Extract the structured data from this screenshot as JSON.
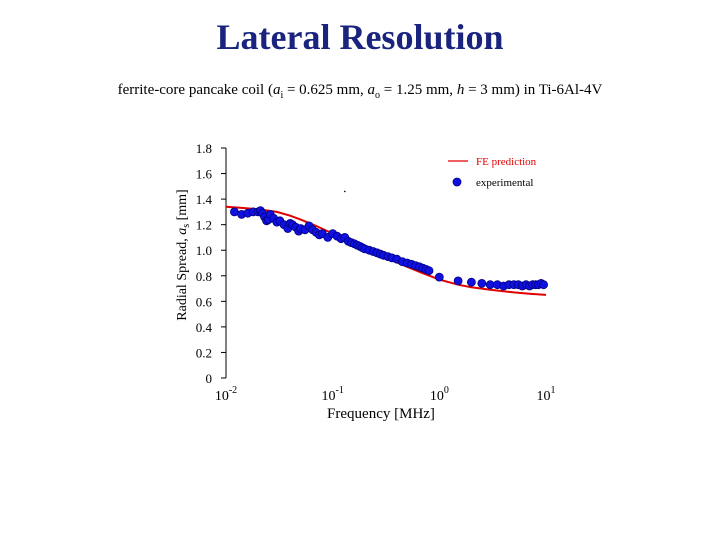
{
  "slide": {
    "title": "Lateral Resolution"
  },
  "subtitle": {
    "prefix": "ferrite-core pancake coil (",
    "ai_sym": "a",
    "ai_sub": "i",
    "ai_val": " = 0.625 mm, ",
    "ao_sym": "a",
    "ao_sub": "o",
    "ao_val": " = 1.25 mm, ",
    "h_sym": "h",
    "h_val": " = 3 mm)  in Ti-6Al-4V"
  },
  "colors": {
    "title": "#1a237e",
    "fe_line": "#e00000",
    "points": "#1010e0",
    "point_edge": "#000080"
  },
  "chart_data": {
    "type": "scatter",
    "title": "",
    "xlabel": "Frequency [MHz]",
    "ylabel_prefix": "Radial Spread,  ",
    "ylabel_sym": "a",
    "ylabel_sub": "s",
    "ylabel_unit": "  [mm]",
    "xscale": "log",
    "xlim": [
      0.01,
      10
    ],
    "ylim": [
      0,
      1.8
    ],
    "yticks": [
      "0",
      "0.2",
      "0.4",
      "0.6",
      "0.8",
      "1.0",
      "1.2",
      "1.4",
      "1.6",
      "1.8"
    ],
    "ytick_values": [
      0,
      0.2,
      0.4,
      0.6,
      0.8,
      1.0,
      1.2,
      1.4,
      1.6,
      1.8
    ],
    "xticks": [
      {
        "base": "10",
        "exp": "-2",
        "value": 0.01
      },
      {
        "base": "10",
        "exp": "-1",
        "value": 0.1
      },
      {
        "base": "10",
        "exp": "0",
        "value": 1
      },
      {
        "base": "10",
        "exp": "1",
        "value": 10
      }
    ],
    "legend_position": "top-right",
    "series": [
      {
        "name": "FE prediction",
        "kind": "line",
        "x": [
          0.01,
          0.015,
          0.02,
          0.03,
          0.04,
          0.05,
          0.07,
          0.1,
          0.15,
          0.2,
          0.3,
          0.5,
          0.7,
          1.0,
          1.5,
          2.0,
          3.0,
          5.0,
          7.0,
          10.0
        ],
        "y": [
          1.34,
          1.33,
          1.32,
          1.3,
          1.27,
          1.24,
          1.19,
          1.13,
          1.06,
          1.01,
          0.95,
          0.87,
          0.82,
          0.77,
          0.73,
          0.71,
          0.69,
          0.67,
          0.66,
          0.65
        ]
      },
      {
        "name": "experimental",
        "kind": "scatter",
        "x": [
          0.012,
          0.014,
          0.016,
          0.018,
          0.02,
          0.021,
          0.022,
          0.023,
          0.024,
          0.025,
          0.026,
          0.028,
          0.03,
          0.032,
          0.035,
          0.038,
          0.04,
          0.042,
          0.045,
          0.048,
          0.05,
          0.055,
          0.06,
          0.065,
          0.07,
          0.075,
          0.08,
          0.09,
          0.1,
          0.11,
          0.12,
          0.13,
          0.14,
          0.15,
          0.16,
          0.17,
          0.18,
          0.19,
          0.2,
          0.22,
          0.24,
          0.26,
          0.28,
          0.3,
          0.33,
          0.36,
          0.4,
          0.45,
          0.5,
          0.55,
          0.6,
          0.65,
          0.7,
          0.75,
          0.8,
          1.0,
          1.5,
          2.0,
          2.5,
          3.0,
          3.5,
          4.0,
          4.5,
          5.0,
          5.5,
          6.0,
          6.5,
          7.0,
          7.5,
          8.0,
          8.5,
          9.0,
          9.5
        ],
        "y": [
          1.3,
          1.28,
          1.29,
          1.3,
          1.3,
          1.31,
          1.29,
          1.26,
          1.23,
          1.24,
          1.28,
          1.25,
          1.22,
          1.23,
          1.2,
          1.17,
          1.21,
          1.2,
          1.18,
          1.15,
          1.17,
          1.16,
          1.19,
          1.16,
          1.14,
          1.12,
          1.13,
          1.1,
          1.13,
          1.11,
          1.09,
          1.1,
          1.07,
          1.06,
          1.05,
          1.04,
          1.03,
          1.02,
          1.01,
          1.0,
          0.99,
          0.98,
          0.97,
          0.96,
          0.95,
          0.94,
          0.93,
          0.91,
          0.9,
          0.89,
          0.88,
          0.87,
          0.86,
          0.85,
          0.84,
          0.79,
          0.76,
          0.75,
          0.74,
          0.73,
          0.73,
          0.72,
          0.73,
          0.73,
          0.73,
          0.72,
          0.73,
          0.72,
          0.73,
          0.73,
          0.73,
          0.74,
          0.73
        ]
      }
    ],
    "stray_dot": {
      "x": 0.13,
      "y": 1.46
    }
  }
}
